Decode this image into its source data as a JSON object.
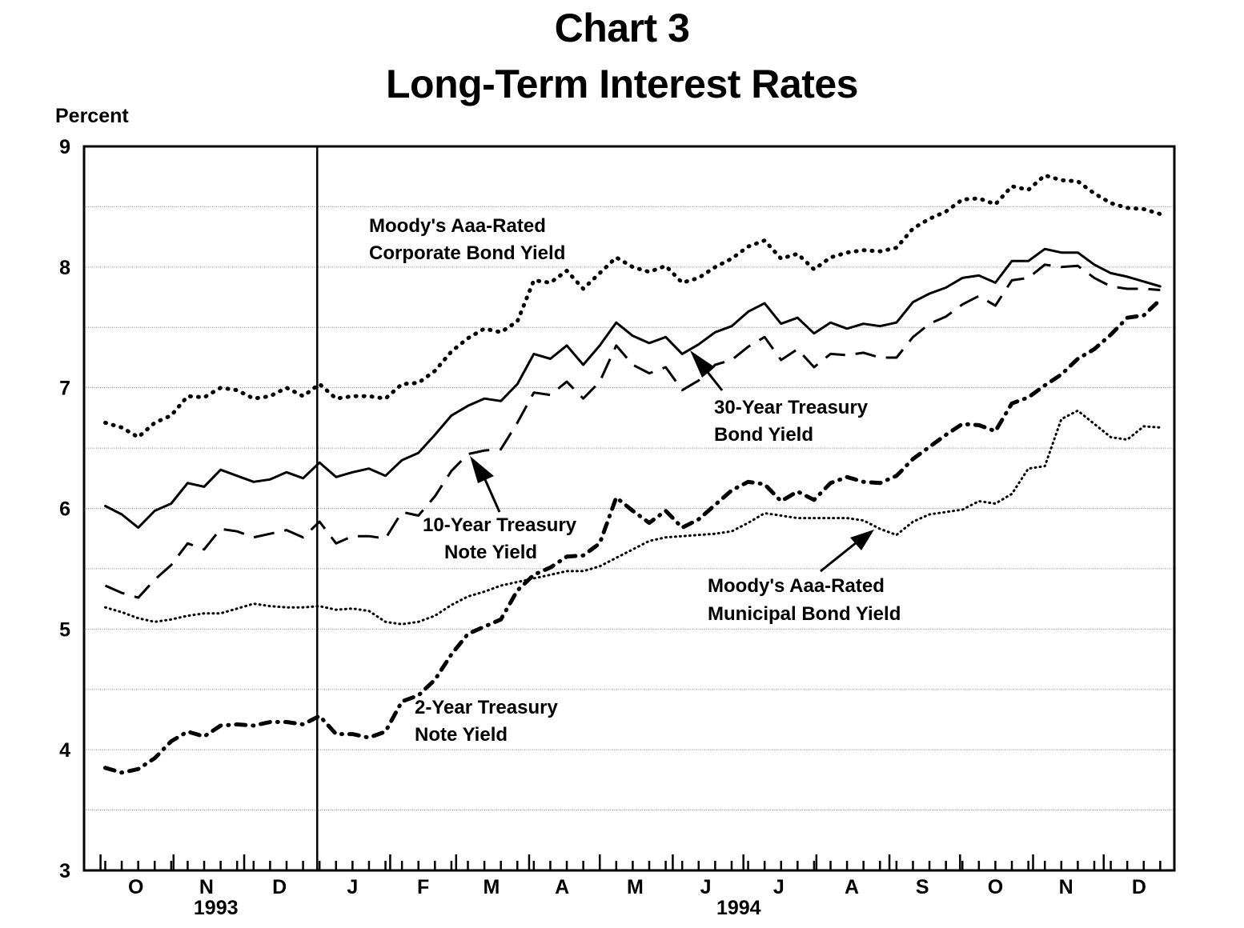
{
  "chart_data": {
    "type": "line",
    "title": "Chart 3",
    "subtitle": "Long-Term Interest Rates",
    "ylabel": "Percent",
    "ylim": [
      3,
      9
    ],
    "yticks": [
      3,
      4,
      5,
      6,
      7,
      8,
      9
    ],
    "grid": true,
    "x_range": [
      "1993-09-24",
      "1994-12-31"
    ],
    "month_labels": [
      "O",
      "N",
      "D",
      "J",
      "F",
      "M",
      "A",
      "M",
      "J",
      "J",
      "A",
      "S",
      "O",
      "N",
      "D"
    ],
    "month_dates": [
      "1993-10-16",
      "1993-11-15",
      "1993-12-16",
      "1994-01-16",
      "1994-02-15",
      "1994-03-16",
      "1994-04-15",
      "1994-05-16",
      "1994-06-15",
      "1994-07-16",
      "1994-08-16",
      "1994-09-15",
      "1994-10-16",
      "1994-11-15",
      "1994-12-16"
    ],
    "year_labels": [
      {
        "label": "1993",
        "date": "1993-11-19"
      },
      {
        "label": "1994",
        "date": "1994-06-29"
      }
    ],
    "vertical_divider_date": "1994-01-01",
    "x": [
      "1993-10-03",
      "1993-10-10",
      "1993-10-17",
      "1993-10-24",
      "1993-10-31",
      "1993-11-07",
      "1993-11-14",
      "1993-11-21",
      "1993-11-28",
      "1993-12-05",
      "1993-12-12",
      "1993-12-19",
      "1993-12-26",
      "1994-01-02",
      "1994-01-09",
      "1994-01-16",
      "1994-01-23",
      "1994-01-30",
      "1994-02-06",
      "1994-02-13",
      "1994-02-20",
      "1994-02-27",
      "1994-03-06",
      "1994-03-13",
      "1994-03-20",
      "1994-03-27",
      "1994-04-03",
      "1994-04-10",
      "1994-04-17",
      "1994-04-24",
      "1994-05-01",
      "1994-05-08",
      "1994-05-15",
      "1994-05-22",
      "1994-05-29",
      "1994-06-05",
      "1994-06-12",
      "1994-06-19",
      "1994-06-26",
      "1994-07-03",
      "1994-07-10",
      "1994-07-17",
      "1994-07-24",
      "1994-07-31",
      "1994-08-07",
      "1994-08-14",
      "1994-08-21",
      "1994-08-28",
      "1994-09-04",
      "1994-09-11",
      "1994-09-18",
      "1994-09-25",
      "1994-10-02",
      "1994-10-09",
      "1994-10-16",
      "1994-10-23",
      "1994-10-30",
      "1994-11-06",
      "1994-11-13",
      "1994-11-20",
      "1994-11-27",
      "1994-12-04",
      "1994-12-11",
      "1994-12-18",
      "1994-12-25"
    ],
    "series": [
      {
        "name": "Moody's Aaa-Rated Corporate Bond Yield",
        "style": "dotted-heavy",
        "color": "#000000",
        "values": [
          6.71,
          6.67,
          6.59,
          6.71,
          6.77,
          6.93,
          6.92,
          7.0,
          6.98,
          6.91,
          6.93,
          7.0,
          6.93,
          7.03,
          6.91,
          6.93,
          6.93,
          6.91,
          7.03,
          7.04,
          7.14,
          7.3,
          7.41,
          7.49,
          7.46,
          7.55,
          7.89,
          7.87,
          7.97,
          7.82,
          7.95,
          8.08,
          8.0,
          7.96,
          8.01,
          7.87,
          7.91,
          8.0,
          8.07,
          8.17,
          8.22,
          8.07,
          8.11,
          7.98,
          8.08,
          8.12,
          8.14,
          8.13,
          8.16,
          8.32,
          8.4,
          8.46,
          8.56,
          8.57,
          8.52,
          8.67,
          8.64,
          8.76,
          8.72,
          8.71,
          8.61,
          8.53,
          8.49,
          8.48,
          8.44
        ]
      },
      {
        "name": "30-Year Treasury Bond Yield",
        "style": "solid",
        "color": "#000000",
        "values": [
          6.02,
          5.95,
          5.84,
          5.98,
          6.04,
          6.21,
          6.18,
          6.32,
          6.27,
          6.22,
          6.24,
          6.3,
          6.25,
          6.38,
          6.26,
          6.3,
          6.33,
          6.27,
          6.4,
          6.46,
          6.61,
          6.77,
          6.85,
          6.91,
          6.89,
          7.03,
          7.28,
          7.24,
          7.35,
          7.19,
          7.35,
          7.54,
          7.43,
          7.37,
          7.42,
          7.28,
          7.36,
          7.46,
          7.51,
          7.63,
          7.7,
          7.53,
          7.58,
          7.45,
          7.54,
          7.49,
          7.53,
          7.51,
          7.54,
          7.71,
          7.78,
          7.83,
          7.91,
          7.93,
          7.87,
          8.05,
          8.05,
          8.15,
          8.12,
          8.12,
          8.02,
          7.95,
          7.92,
          7.88,
          7.84
        ]
      },
      {
        "name": "10-Year Treasury Note Yield",
        "style": "dashed",
        "color": "#000000",
        "values": [
          5.36,
          5.3,
          5.26,
          5.41,
          5.53,
          5.71,
          5.66,
          5.83,
          5.81,
          5.76,
          5.79,
          5.82,
          5.76,
          5.89,
          5.71,
          5.77,
          5.77,
          5.75,
          5.97,
          5.94,
          6.1,
          6.31,
          6.45,
          6.48,
          6.49,
          6.71,
          6.96,
          6.94,
          7.05,
          6.91,
          7.05,
          7.35,
          7.19,
          7.12,
          7.17,
          6.98,
          7.06,
          7.19,
          7.23,
          7.34,
          7.42,
          7.23,
          7.32,
          7.17,
          7.28,
          7.27,
          7.29,
          7.25,
          7.25,
          7.42,
          7.53,
          7.59,
          7.69,
          7.76,
          7.68,
          7.89,
          7.91,
          8.02,
          8.0,
          8.01,
          7.91,
          7.84,
          7.82,
          7.82,
          7.81
        ]
      },
      {
        "name": "Moody's Aaa-Rated Municipal Bond Yield",
        "style": "dotted-fine",
        "color": "#000000",
        "values": [
          5.18,
          5.14,
          5.09,
          5.06,
          5.08,
          5.11,
          5.13,
          5.13,
          5.17,
          5.21,
          5.19,
          5.18,
          5.18,
          5.19,
          5.16,
          5.17,
          5.15,
          5.06,
          5.04,
          5.06,
          5.11,
          5.2,
          5.27,
          5.31,
          5.36,
          5.39,
          5.42,
          5.45,
          5.48,
          5.48,
          5.52,
          5.59,
          5.66,
          5.73,
          5.76,
          5.77,
          5.78,
          5.79,
          5.81,
          5.88,
          5.96,
          5.94,
          5.92,
          5.92,
          5.92,
          5.92,
          5.9,
          5.83,
          5.78,
          5.89,
          5.95,
          5.97,
          5.99,
          6.06,
          6.04,
          6.12,
          6.33,
          6.35,
          6.74,
          6.81,
          6.7,
          6.59,
          6.57,
          6.68,
          6.67
        ]
      },
      {
        "name": "2-Year Treasury Note Yield",
        "style": "dash-dot",
        "color": "#000000",
        "values": [
          3.85,
          3.81,
          3.84,
          3.93,
          4.07,
          4.15,
          4.11,
          4.2,
          4.21,
          4.2,
          4.23,
          4.23,
          4.21,
          4.28,
          4.13,
          4.13,
          4.1,
          4.15,
          4.4,
          4.45,
          4.58,
          4.79,
          4.96,
          5.02,
          5.08,
          5.32,
          5.45,
          5.51,
          5.6,
          5.61,
          5.71,
          6.09,
          5.98,
          5.88,
          5.98,
          5.84,
          5.91,
          6.03,
          6.15,
          6.22,
          6.2,
          6.06,
          6.14,
          6.07,
          6.21,
          6.26,
          6.22,
          6.21,
          6.27,
          6.41,
          6.51,
          6.61,
          6.7,
          6.69,
          6.64,
          6.87,
          6.92,
          7.02,
          7.11,
          7.24,
          7.32,
          7.44,
          7.58,
          7.6,
          7.73
        ]
      }
    ],
    "annotations": [
      {
        "id": "corp",
        "lines": [
          "Moody's Aaa-Rated",
          "Corporate Bond Yield"
        ]
      },
      {
        "id": "t30",
        "lines": [
          "30-Year Treasury",
          "Bond Yield"
        ]
      },
      {
        "id": "t10",
        "lines": [
          "10-Year Treasury",
          "Note Yield"
        ]
      },
      {
        "id": "muni",
        "lines": [
          "Moody's Aaa-Rated",
          "Municipal Bond Yield"
        ]
      },
      {
        "id": "t2",
        "lines": [
          "2-Year Treasury",
          "Note Yield"
        ]
      }
    ]
  }
}
